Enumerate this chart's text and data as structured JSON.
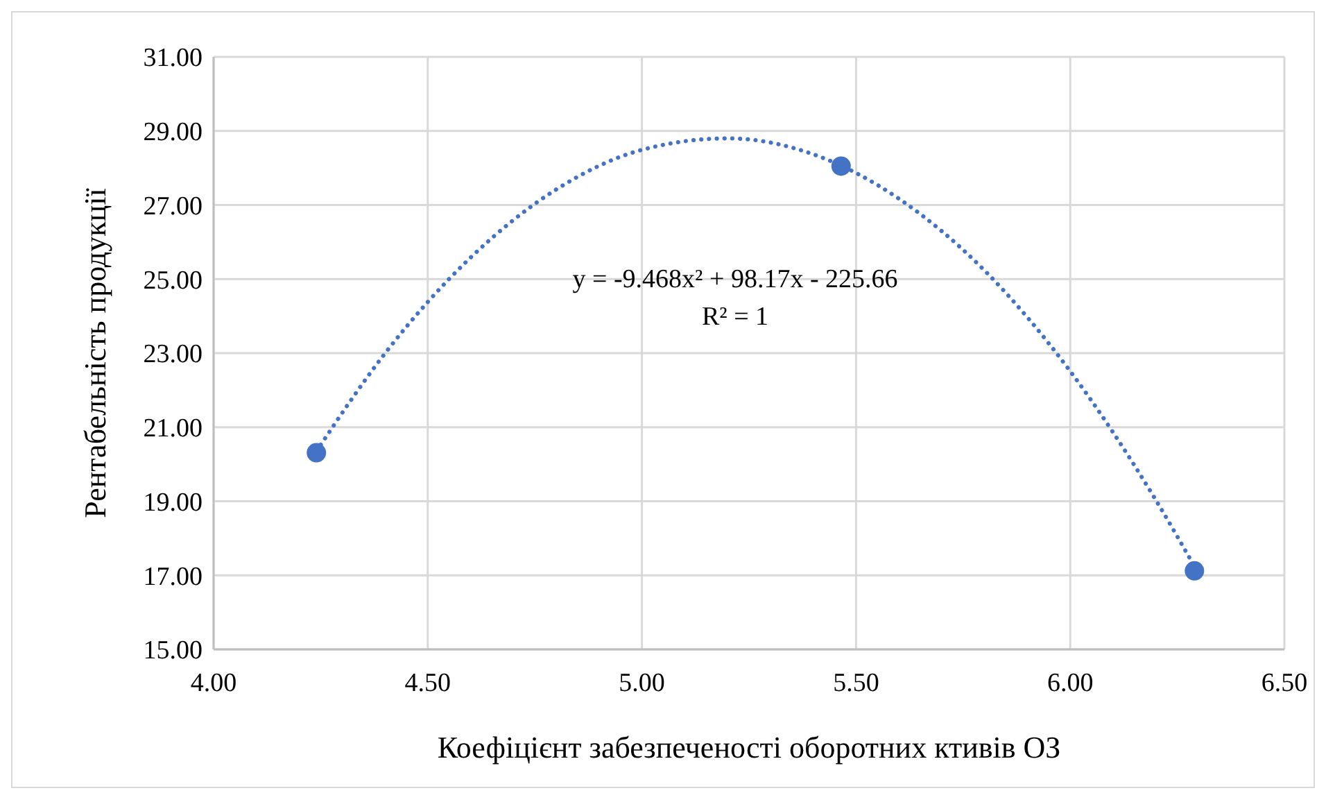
{
  "chart_data": {
    "type": "scatter",
    "xlabel": "Коефіцієнт забезпеченості оборотних ктивів ОЗ",
    "ylabel": "Рентабельність продукції",
    "x": [
      4.24,
      5.465,
      6.29
    ],
    "series": [
      {
        "color": "#4472c4",
        "marker": "circle",
        "values": [
          20.31,
          28.05,
          17.12
        ]
      },
      {
        "type": "line",
        "color": "#4472c4",
        "line_style": "dotted",
        "x": [
          4.24,
          4.4,
          4.6,
          4.8,
          5.0,
          5.2,
          5.4,
          5.6,
          5.8,
          6.0,
          6.2,
          6.29
        ],
        "values": [
          20.35,
          22.99,
          25.58,
          27.42,
          28.49,
          28.8,
          28.37,
          27.17,
          25.23,
          22.51,
          19.03,
          17.24
        ]
      }
    ],
    "annotations": [
      "y = -9.468x² + 98.17x - 225.66",
      "R² = 1"
    ],
    "xlim": [
      4,
      6.5
    ],
    "xticks": [
      {
        "value": 4,
        "label": "4.00"
      },
      {
        "value": 4.5,
        "label": "4.50"
      },
      {
        "value": 5,
        "label": "5.00"
      },
      {
        "value": 5.5,
        "label": "5.50"
      },
      {
        "value": 6,
        "label": "6.00"
      },
      {
        "value": 6.5,
        "label": "6.50"
      }
    ],
    "ylim": [
      15,
      31
    ],
    "yticks": [
      {
        "value": 15,
        "label": "15.00"
      },
      {
        "value": 17,
        "label": "17.00"
      },
      {
        "value": 19,
        "label": "19.00"
      },
      {
        "value": 21,
        "label": "21.00"
      },
      {
        "value": 23,
        "label": "23.00"
      },
      {
        "value": 25,
        "label": "25.00"
      },
      {
        "value": 27,
        "label": "27.00"
      },
      {
        "value": 29,
        "label": "29.00"
      },
      {
        "value": 31,
        "label": "31.00"
      }
    ],
    "grid": true
  }
}
